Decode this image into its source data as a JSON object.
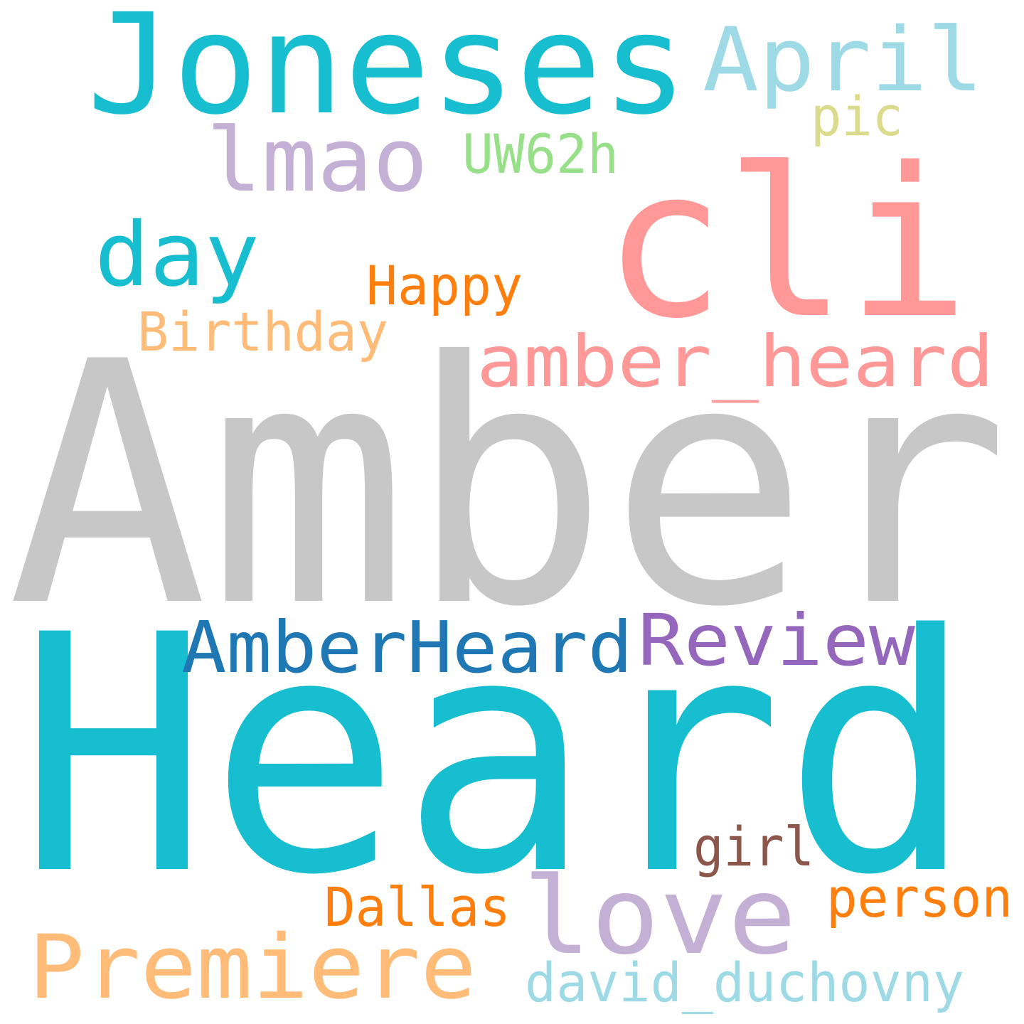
{
  "words": [
    {
      "text": "Amber",
      "color": "#c7c7c7"
    },
    {
      "text": "Heard",
      "color": "#17becf"
    },
    {
      "text": "cli",
      "color": "#ff9896"
    },
    {
      "text": "Joneses",
      "color": "#17becf"
    },
    {
      "text": "April",
      "color": "#9edae5"
    },
    {
      "text": "lmao",
      "color": "#c5b0d5"
    },
    {
      "text": "UW62h",
      "color": "#98df8a"
    },
    {
      "text": "pic",
      "color": "#dbdb8d"
    },
    {
      "text": "day",
      "color": "#17becf"
    },
    {
      "text": "Happy",
      "color": "#ff7f0e"
    },
    {
      "text": "Birthday",
      "color": "#ffbb78"
    },
    {
      "text": "amber_heard",
      "color": "#ff9896"
    },
    {
      "text": "AmberHeard",
      "color": "#1f77b4"
    },
    {
      "text": "Review",
      "color": "#9467bd"
    },
    {
      "text": "girl",
      "color": "#8c564b"
    },
    {
      "text": "love",
      "color": "#c5b0d5"
    },
    {
      "text": "Dallas",
      "color": "#ff7f0e"
    },
    {
      "text": "person",
      "color": "#ff7f0e"
    },
    {
      "text": "Premiere",
      "color": "#ffbb78"
    },
    {
      "text": "david_duchovny",
      "color": "#9edae5"
    }
  ]
}
